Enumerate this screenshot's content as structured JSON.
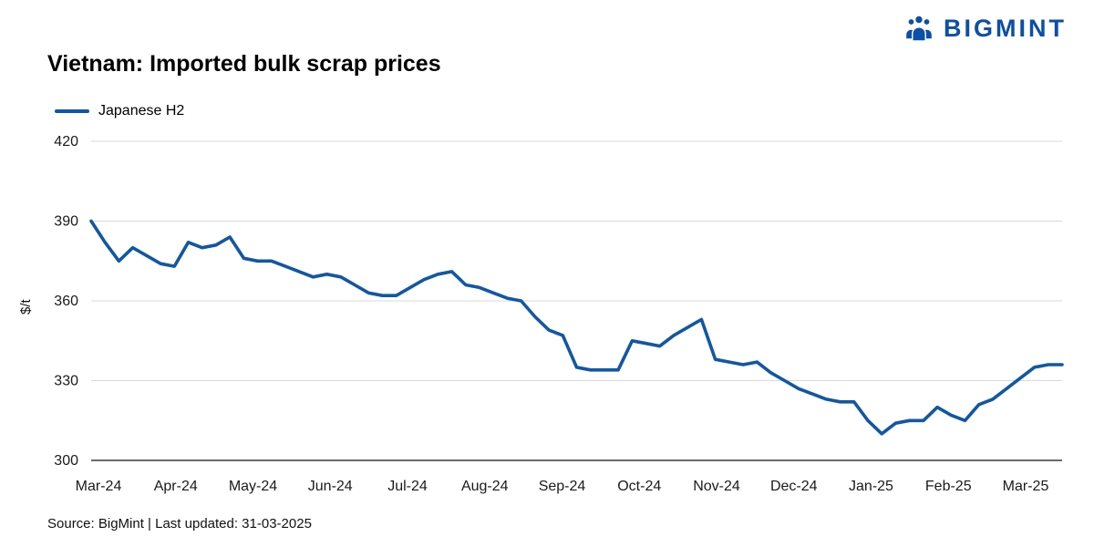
{
  "logo": {
    "text": "BIGMINT",
    "color": "#0a4fa8"
  },
  "title": "Vietnam: Imported bulk scrap prices",
  "legend": {
    "items": [
      {
        "label": "Japanese H2",
        "color": "#1057a5"
      }
    ]
  },
  "footer": {
    "text": "Source: BigMint | Last updated: 31-03-2025"
  },
  "chart_data": {
    "type": "line",
    "title": "Vietnam: Imported bulk scrap prices",
    "xlabel": "",
    "ylabel": "$/t",
    "ylim": [
      300,
      420
    ],
    "yticks": [
      300,
      330,
      360,
      390,
      420
    ],
    "grid": "horizontal",
    "legend_position": "top-left",
    "x_labels": [
      "Mar-24",
      "Apr-24",
      "May-24",
      "Jun-24",
      "Jul-24",
      "Aug-24",
      "Sep-24",
      "Oct-24",
      "Nov-24",
      "Dec-24",
      "Jan-25",
      "Feb-25",
      "Mar-25"
    ],
    "series": [
      {
        "name": "Japanese H2",
        "color": "#1057a5",
        "values": [
          390,
          382,
          375,
          380,
          377,
          374,
          373,
          382,
          380,
          381,
          384,
          376,
          375,
          375,
          373,
          371,
          369,
          370,
          369,
          366,
          363,
          362,
          362,
          365,
          368,
          370,
          371,
          366,
          365,
          363,
          361,
          360,
          354,
          349,
          347,
          335,
          334,
          334,
          334,
          345,
          344,
          343,
          347,
          350,
          353,
          338,
          337,
          336,
          337,
          333,
          330,
          327,
          325,
          323,
          322,
          322,
          315,
          310,
          314,
          315,
          315,
          320,
          317,
          315,
          321,
          323,
          327,
          331,
          335,
          336,
          336
        ]
      }
    ]
  }
}
